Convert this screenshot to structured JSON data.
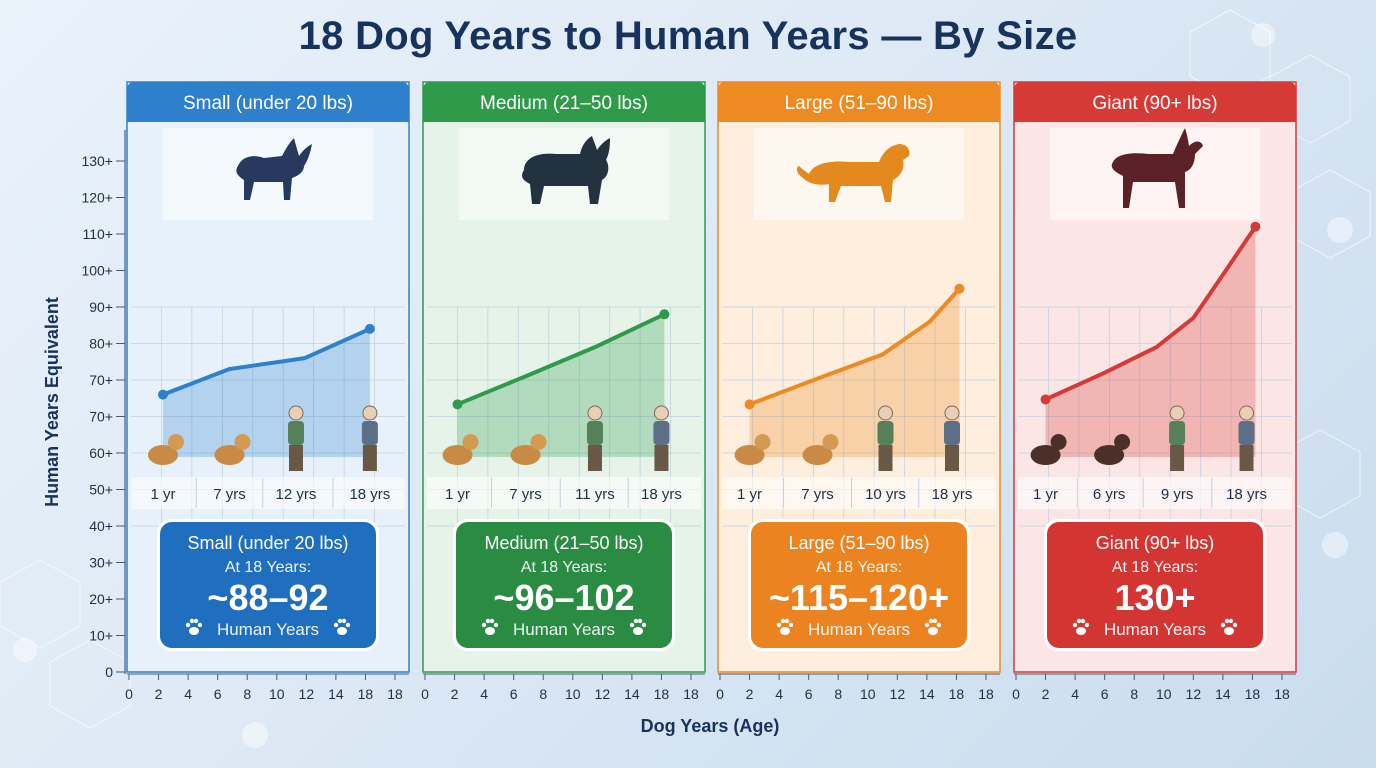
{
  "title": "18 Dog Years to Human Years — By Size",
  "colors": {
    "small": "#2f80cc",
    "medium": "#2e9a4a",
    "large": "#ee8a22",
    "giant": "#d63a37",
    "text": "#17325c"
  },
  "chart_data": {
    "type": "line",
    "title": "18 Dog Years to Human Years — By Size",
    "xlabel": "Dog Years (Age)",
    "ylabel": "Human Years Equivalent",
    "xlim": [
      0,
      18
    ],
    "xticks": [
      "0",
      "2",
      "4",
      "6",
      "8",
      "10",
      "12",
      "14",
      "18",
      "18"
    ],
    "yticks": [
      "0",
      "10+",
      "20+",
      "30+",
      "40+",
      "50+",
      "60+",
      "70+",
      "70+",
      "80+",
      "90+",
      "100+",
      "110+",
      "120+",
      "130+"
    ],
    "grid": true,
    "panels": [
      {
        "key": "small",
        "header": "Small (under 20 lbs)",
        "icon": "chihuahua-silhouette-icon",
        "color": "#2f80cc",
        "categories": [
          "1 yr",
          "7 yrs",
          "12 yrs",
          "18 yrs"
        ],
        "category_x": [
          2.3,
          6.8,
          11.3,
          16.3
        ],
        "points": [
          [
            2.3,
            67
          ],
          [
            6.8,
            73
          ],
          [
            11.9,
            76
          ],
          [
            16.3,
            84
          ]
        ],
        "summary": {
          "title": "Small (under 20 lbs)",
          "sub": "At 18 Years:",
          "value": "~88–92",
          "unit": "Human Years",
          "color": "#1f6fbe"
        }
      },
      {
        "key": "medium",
        "header": "Medium (21–50 lbs)",
        "icon": "bulldog-silhouette-icon",
        "color": "#2e9a4a",
        "categories": [
          "1 yr",
          "7 yrs",
          "11 yrs",
          "18 yrs"
        ],
        "category_x": [
          2.2,
          6.8,
          11.5,
          16.0
        ],
        "points": [
          [
            2.2,
            65
          ],
          [
            6.8,
            71
          ],
          [
            11.5,
            79
          ],
          [
            16.2,
            88
          ]
        ],
        "summary": {
          "title": "Medium (21–50 lbs)",
          "sub": "At 18 Years:",
          "value": "~96–102",
          "unit": "Human Years",
          "color": "#2a8c43"
        }
      },
      {
        "key": "large",
        "header": "Large (51–90 lbs)",
        "icon": "golden-retriever-silhouette-icon",
        "color": "#ee8a22",
        "categories": [
          "1 yr",
          "7 yrs",
          "10 yrs",
          "18 yrs"
        ],
        "category_x": [
          2.0,
          6.6,
          11.2,
          15.7
        ],
        "points": [
          [
            2.0,
            65
          ],
          [
            7.0,
            71
          ],
          [
            11.0,
            77
          ],
          [
            14.2,
            86
          ],
          [
            16.2,
            95
          ]
        ],
        "summary": {
          "title": "Large (51–90 lbs)",
          "sub": "At 18 Years:",
          "value": "~115–120+",
          "unit": "Human Years",
          "color": "#eb8420"
        }
      },
      {
        "key": "giant",
        "header": "Giant (90+ lbs)",
        "icon": "great-dane-silhouette-icon",
        "color": "#d63a37",
        "categories": [
          "1 yr",
          "6 yrs",
          "9 yrs",
          "18 yrs"
        ],
        "category_x": [
          2.0,
          6.3,
          10.9,
          15.6
        ],
        "points": [
          [
            2.0,
            66
          ],
          [
            6.0,
            72
          ],
          [
            9.5,
            79
          ],
          [
            12.0,
            87
          ],
          [
            14.2,
            100
          ],
          [
            16.2,
            112
          ]
        ],
        "summary": {
          "title": "Giant (90+ lbs)",
          "sub": "At 18 Years:",
          "value": "130+",
          "unit": "Human Years",
          "color": "#d23532"
        }
      }
    ]
  }
}
